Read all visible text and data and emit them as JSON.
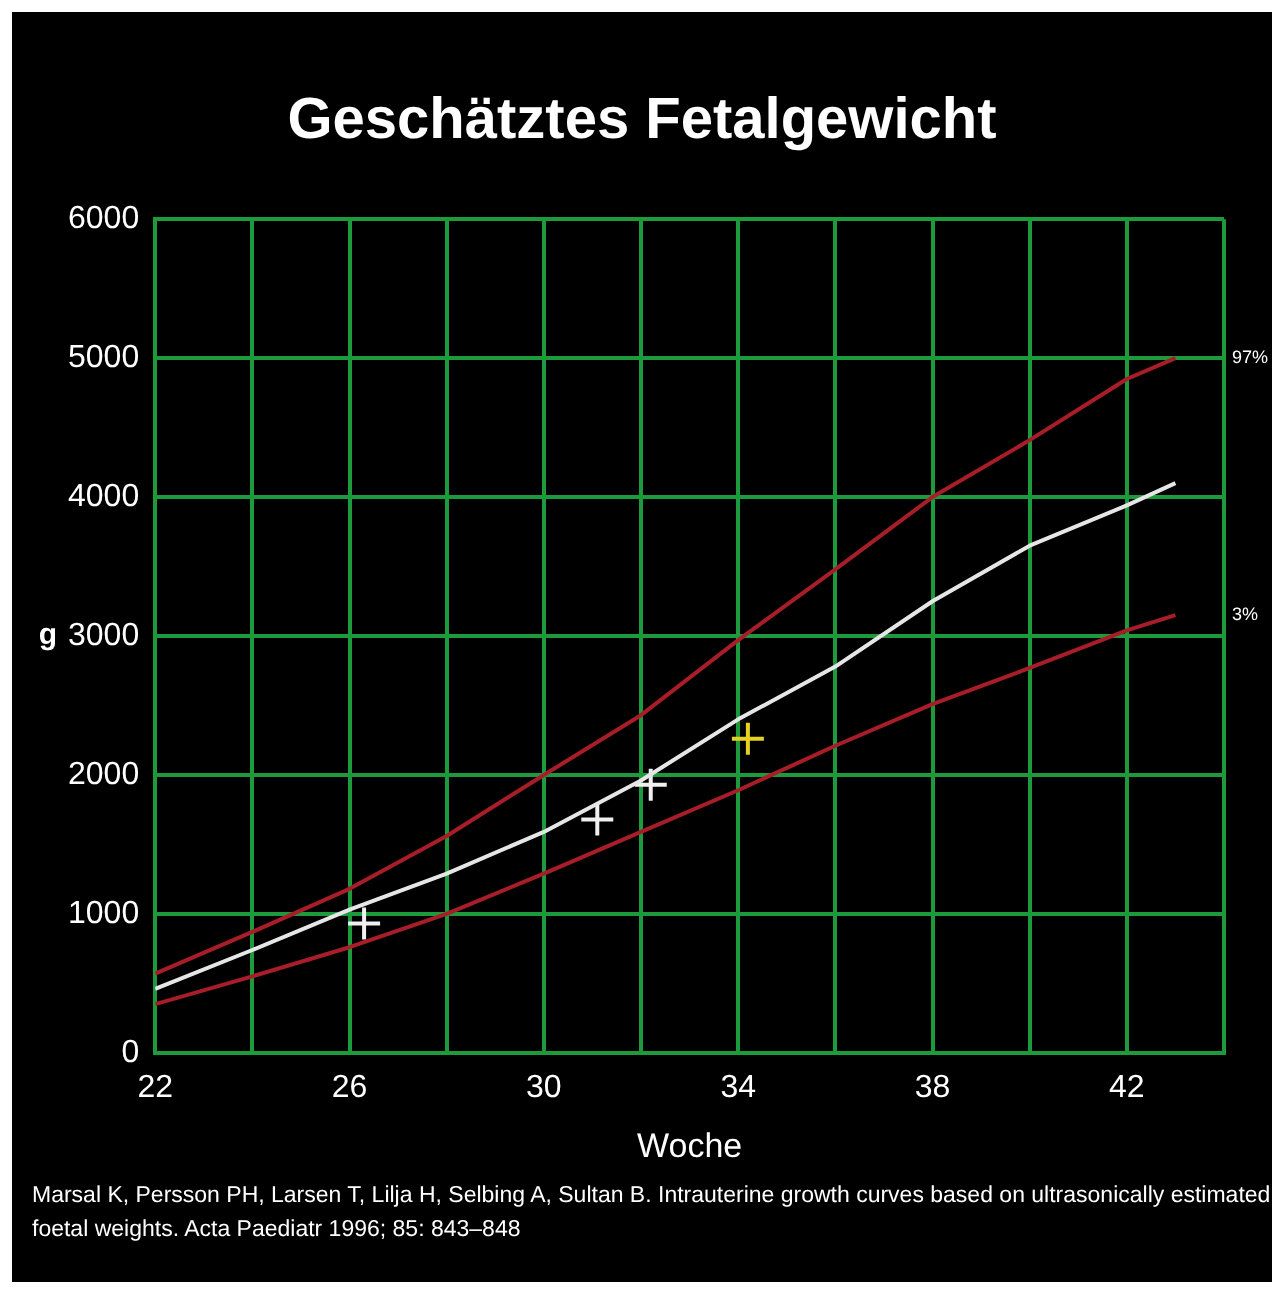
{
  "chart_data": {
    "type": "line",
    "title": "Geschätztes Fetalgewicht",
    "xlabel": "Woche",
    "ylabel": "g",
    "xlim": [
      22,
      44
    ],
    "xticks": [
      22,
      {
        "value": 24,
        "label": null
      },
      26,
      {
        "value": 28,
        "label": null
      },
      30,
      {
        "value": 32,
        "label": null
      },
      34,
      {
        "value": 36,
        "label": null
      },
      38,
      {
        "value": 40,
        "label": null
      },
      42,
      {
        "value": 44,
        "label": null
      }
    ],
    "ylim": [
      0,
      6000
    ],
    "yticks": [
      0,
      1000,
      2000,
      3000,
      4000,
      5000,
      6000
    ],
    "grid": true,
    "legend": false,
    "series": [
      {
        "name": "97%",
        "type": "line",
        "marker": "none",
        "color": "#a81e28",
        "x": [
          22,
          24,
          26,
          28,
          30,
          32,
          34,
          36,
          38,
          40,
          42,
          43
        ],
        "values": [
          570,
          870,
          1180,
          1560,
          2000,
          2430,
          2970,
          3480,
          4000,
          4410,
          4850,
          5000
        ]
      },
      {
        "type": "line",
        "marker": "none",
        "color": "#e6e6e6",
        "x": [
          22,
          24,
          26,
          28,
          30,
          32,
          34,
          36,
          38,
          40,
          42,
          43
        ],
        "values": [
          460,
          740,
          1030,
          1290,
          1590,
          1960,
          2400,
          2780,
          3250,
          3650,
          3940,
          4100
        ]
      },
      {
        "name": "3%",
        "type": "line",
        "marker": "none",
        "color": "#a81e28",
        "x": [
          22,
          24,
          26,
          28,
          30,
          32,
          34,
          36,
          38,
          40,
          42,
          43
        ],
        "values": [
          350,
          550,
          760,
          1000,
          1290,
          1590,
          1890,
          2210,
          2510,
          2770,
          3040,
          3150
        ]
      },
      {
        "type": "scatter",
        "marker": "cross",
        "color": "#f0f0f0",
        "x": [
          26.3,
          31.1,
          32.2
        ],
        "values": [
          930,
          1680,
          1930
        ]
      },
      {
        "type": "scatter",
        "marker": "cross",
        "color": "#e8d020",
        "x": [
          34.2
        ],
        "values": [
          2260
        ]
      }
    ],
    "annotations": [
      "Marsal K, Persson PH, Larsen T, Lilja H, Selbing A, Sultan B. Intrauterine growth curves based on ultrasonically estimated foetal weights. Acta Paediatr 1996; 85: 843–848"
    ]
  }
}
